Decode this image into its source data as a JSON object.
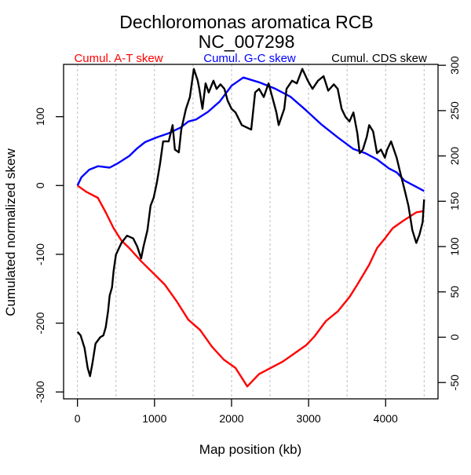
{
  "chart_data": {
    "type": "line",
    "title": "Dechloromonas aromatica RCB",
    "subtitle": "NC_007298",
    "xlabel": "Map position (kb)",
    "ylabel": "Cumulated normalized skew",
    "xlim": [
      -180,
      4680
    ],
    "ylim_left": [
      -310,
      176
    ],
    "ylim_right": [
      -68,
      301
    ],
    "x_ticks": [
      0,
      1000,
      2000,
      3000,
      4000
    ],
    "x_tick_labels": [
      "0",
      "1000",
      "2000",
      "3000",
      "4000"
    ],
    "y_left_ticks": [
      -300,
      -200,
      -100,
      0,
      100
    ],
    "y_left_tick_labels": [
      "-300",
      "-200",
      "-100",
      "0",
      "100"
    ],
    "y_right_ticks": [
      -50,
      0,
      50,
      100,
      150,
      200,
      250,
      300
    ],
    "y_right_tick_labels": [
      "-50",
      "0",
      "50",
      "100",
      "150",
      "200",
      "250",
      "300"
    ],
    "grid": "vertical dashed every 500 kb",
    "grid_x": [
      0,
      500,
      1000,
      1500,
      2000,
      2500,
      3000,
      3500,
      4000,
      4500
    ],
    "legend_placement": "top",
    "series": [
      {
        "name": "Cumul. A-T skew",
        "color": "#ff0000",
        "axis": "left",
        "x": [
          0,
          112,
          265,
          367,
          469,
          571,
          673,
          827,
          980,
          1133,
          1286,
          1439,
          1592,
          1745,
          1898,
          2051,
          2204,
          2357,
          2510,
          2663,
          2816,
          2969,
          3071,
          3224,
          3378,
          3531,
          3633,
          3786,
          3888,
          3990,
          4092,
          4245,
          4398,
          4500
        ],
        "values": [
          0,
          -9,
          -18,
          -39,
          -62,
          -80,
          -91,
          -110,
          -127,
          -144,
          -168,
          -195,
          -210,
          -234,
          -253,
          -265,
          -292,
          -274,
          -265,
          -256,
          -244,
          -232,
          -220,
          -197,
          -183,
          -162,
          -144,
          -115,
          -91,
          -77,
          -62,
          -50,
          -39,
          -37
        ]
      },
      {
        "name": "Cumul. G-C skew",
        "color": "#0000ff",
        "axis": "left",
        "x": [
          0,
          51,
          153,
          265,
          418,
          520,
          673,
          776,
          878,
          1031,
          1184,
          1337,
          1439,
          1541,
          1694,
          1847,
          2000,
          2153,
          2357,
          2561,
          2765,
          2969,
          3173,
          3378,
          3582,
          3735,
          3888,
          4041,
          4143,
          4245,
          4500
        ],
        "values": [
          0,
          12,
          23,
          28,
          26,
          32,
          43,
          54,
          63,
          70,
          76,
          84,
          93,
          96,
          107,
          122,
          145,
          157,
          150,
          141,
          129,
          109,
          88,
          70,
          53,
          47,
          38,
          25,
          19,
          7,
          -8
        ]
      },
      {
        "name": "Cumul. CDS skew",
        "color": "#000000",
        "axis": "right",
        "x": [
          0,
          41,
          92,
          133,
          163,
          194,
          235,
          296,
          337,
          367,
          398,
          418,
          449,
          469,
          500,
          571,
          643,
          724,
          776,
          827,
          857,
          908,
          949,
          990,
          1031,
          1071,
          1112,
          1184,
          1235,
          1265,
          1316,
          1347,
          1408,
          1459,
          1510,
          1561,
          1582,
          1622,
          1663,
          1704,
          1765,
          1806,
          1857,
          1908,
          1949,
          2000,
          2051,
          2133,
          2255,
          2306,
          2357,
          2418,
          2480,
          2541,
          2582,
          2612,
          2684,
          2714,
          2786,
          2847,
          2918,
          2990,
          3051,
          3122,
          3194,
          3255,
          3327,
          3378,
          3429,
          3480,
          3531,
          3582,
          3633,
          3663,
          3704,
          3755,
          3786,
          3837,
          3888,
          3939,
          3990,
          4020,
          4071,
          4143,
          4194,
          4245,
          4296,
          4347,
          4398,
          4439,
          4480,
          4500
        ],
        "values": [
          6,
          2,
          -12,
          -34,
          -43,
          -29,
          -7,
          0,
          2,
          11,
          29,
          46,
          55,
          73,
          91,
          104,
          112,
          109,
          100,
          87,
          100,
          118,
          145,
          154,
          171,
          191,
          216,
          216,
          234,
          207,
          204,
          229,
          252,
          265,
          296,
          283,
          274,
          252,
          280,
          270,
          283,
          274,
          279,
          274,
          261,
          252,
          248,
          234,
          229,
          270,
          274,
          265,
          280,
          261,
          248,
          234,
          252,
          274,
          283,
          280,
          296,
          283,
          274,
          283,
          288,
          272,
          279,
          274,
          252,
          243,
          238,
          248,
          225,
          203,
          207,
          221,
          234,
          227,
          203,
          207,
          198,
          207,
          216,
          198,
          180,
          163,
          145,
          118,
          104,
          113,
          127,
          152
        ]
      }
    ]
  }
}
